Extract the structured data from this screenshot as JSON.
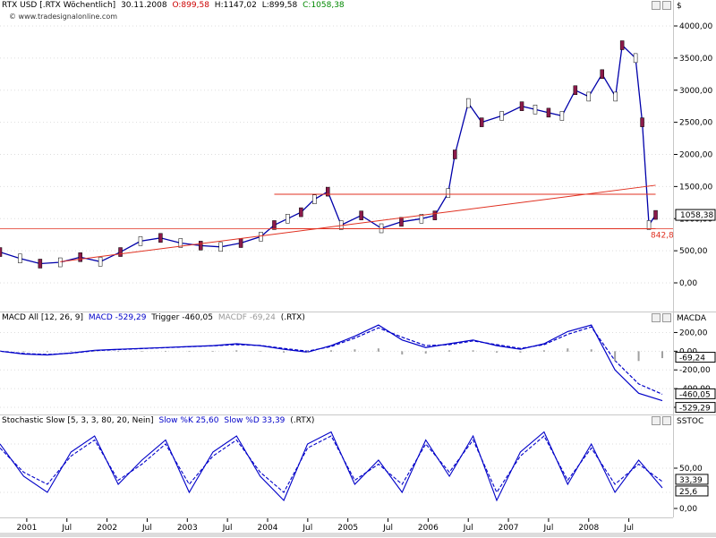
{
  "price_panel": {
    "symbol": "RTX USD [.RTX Wöchentlich]",
    "date": "30.11.2008",
    "open": "O:899,58",
    "high": "H:1147,02",
    "low": "L:899,58",
    "close": "C:1058,38",
    "watermark": "© www.tradesignalonline.com",
    "axis_unit": "$",
    "y_ticks": [
      "4000,00",
      "3500,00",
      "3000,00",
      "2500,00",
      "2000,00",
      "1500,00",
      "1000,00",
      "500,00",
      "0,00"
    ],
    "last_value_label": "1058,38",
    "support_label": "842,81"
  },
  "macd_panel": {
    "title": "MACD All [12, 26, 9]",
    "macd_label": "MACD -529,29",
    "trigger_label": "Trigger -460,05",
    "macdf_label": "MACDF -69,24",
    "symbol": "(.RTX)",
    "axis_title": "MACDA",
    "y_ticks": [
      "200,00",
      "0,00",
      "-200,00",
      "-400,00",
      "-600,00"
    ],
    "value_labels": [
      "-69,24",
      "-460,05",
      "-529,29"
    ]
  },
  "stoch_panel": {
    "title": "Stochastic Slow [5, 3, 3, 80, 20, Nein]",
    "k_label": "Slow %K 25,60",
    "d_label": "Slow %D 33,39",
    "symbol": "(.RTX)",
    "axis_title": "SSTOC",
    "y_ticks": [
      "50,00",
      "0,00"
    ],
    "value_labels": [
      "33,39",
      "25,6"
    ]
  },
  "time_axis": [
    "2001",
    "Jul",
    "2002",
    "Jul",
    "2003",
    "Jul",
    "2004",
    "Jul",
    "2005",
    "Jul",
    "2006",
    "Jul",
    "2007",
    "Jul",
    "2008",
    "Jul"
  ],
  "colors": {
    "price": "#0000aa",
    "candle_up": "#ffffff",
    "candle_down": "#8b1a4a",
    "trendline": "#e03020",
    "macd": "#0000c8",
    "trigger": "#0000c8",
    "hist": "#a0a0a0",
    "stoch_k": "#0000c8",
    "stoch_d": "#0000c8",
    "open": "#cc0000",
    "close": "#008800"
  },
  "chart_data": [
    {
      "type": "line",
      "title": "RTX USD [.RTX Wöchentlich]",
      "x": [
        "2000-09",
        "2000-12",
        "2001-03",
        "2001-06",
        "2001-09",
        "2001-12",
        "2002-03",
        "2002-06",
        "2002-09",
        "2002-12",
        "2003-03",
        "2003-06",
        "2003-09",
        "2003-12",
        "2004-02",
        "2004-04",
        "2004-06",
        "2004-08",
        "2004-10",
        "2004-12",
        "2005-03",
        "2005-06",
        "2005-09",
        "2005-12",
        "2006-02",
        "2006-04",
        "2006-05",
        "2006-07",
        "2006-09",
        "2006-12",
        "2007-03",
        "2007-05",
        "2007-07",
        "2007-09",
        "2007-11",
        "2008-01",
        "2008-03",
        "2008-05",
        "2008-06",
        "2008-08",
        "2008-09",
        "2008-10",
        "2008-11"
      ],
      "values": [
        480,
        380,
        300,
        320,
        400,
        330,
        480,
        650,
        700,
        620,
        580,
        560,
        620,
        720,
        900,
        1000,
        1100,
        1300,
        1420,
        900,
        1050,
        850,
        950,
        1000,
        1050,
        1400,
        2000,
        2800,
        2500,
        2600,
        2750,
        2700,
        2650,
        2600,
        3000,
        2900,
        3250,
        2900,
        3700,
        3500,
        2500,
        900,
        1058
      ],
      "ylim": [
        0,
        4000
      ],
      "trendlines": [
        {
          "from": [
            "2001-06",
            330
          ],
          "to": [
            "2008-11",
            1520
          ]
        },
        {
          "from": [
            "2004-02",
            1380
          ],
          "to": [
            "2008-11",
            1380
          ]
        },
        {
          "from": [
            "2004-02",
            842.81
          ],
          "to": [
            "2008-11",
            842.81
          ]
        }
      ]
    },
    {
      "type": "line",
      "title": "MACD All [12, 26, 9]",
      "series": [
        {
          "name": "MACD",
          "values": [
            0,
            -30,
            -40,
            -20,
            10,
            20,
            30,
            40,
            50,
            60,
            80,
            60,
            20,
            -10,
            60,
            160,
            280,
            120,
            40,
            80,
            120,
            60,
            20,
            80,
            210,
            280,
            -200,
            -450,
            -529.29
          ]
        },
        {
          "name": "Trigger",
          "values": [
            0,
            -25,
            -35,
            -22,
            5,
            18,
            28,
            38,
            48,
            58,
            70,
            62,
            30,
            0,
            50,
            140,
            250,
            150,
            60,
            70,
            110,
            70,
            30,
            70,
            180,
            260,
            -100,
            -350,
            -460.05
          ]
        }
      ],
      "ylim": [
        -600,
        300
      ]
    },
    {
      "type": "line",
      "title": "Stochastic Slow [5, 3, 3, 80, 20, Nein]",
      "series": [
        {
          "name": "Slow %K",
          "values": [
            80,
            40,
            20,
            70,
            90,
            30,
            60,
            85,
            20,
            70,
            90,
            40,
            10,
            80,
            95,
            30,
            60,
            20,
            85,
            40,
            90,
            10,
            70,
            95,
            30,
            80,
            20,
            60,
            25.6
          ]
        },
        {
          "name": "Slow %D",
          "values": [
            75,
            45,
            30,
            65,
            85,
            35,
            55,
            80,
            30,
            65,
            85,
            45,
            20,
            75,
            90,
            35,
            55,
            30,
            80,
            45,
            85,
            20,
            65,
            90,
            35,
            75,
            30,
            55,
            33.39
          ]
        }
      ],
      "ylim": [
        0,
        100
      ]
    }
  ]
}
